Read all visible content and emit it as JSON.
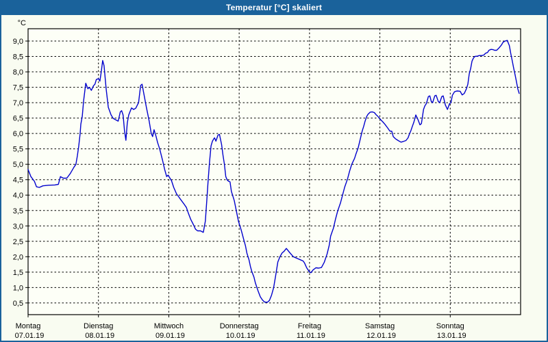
{
  "window": {
    "title": "Temperatur [°C] skaliert"
  },
  "colors": {
    "titlebar": "#1a629b",
    "window_border": "#1a629b",
    "background": "#f9fcf1",
    "plot_background": "#fdfff7",
    "grid": "#000000",
    "axis": "#000000",
    "line": "#0000cd",
    "title_text": "#ffffff",
    "label_text": "#000000"
  },
  "chart_data": {
    "type": "line",
    "title": "Temperatur [°C] skaliert",
    "y_unit_label": "°C",
    "ylim": [
      0.12,
      9.4
    ],
    "xlim_days": [
      0,
      7
    ],
    "grid": "dashed",
    "legend": "none",
    "y_ticks": [
      [
        9.0,
        "9,0"
      ],
      [
        8.5,
        "8,5"
      ],
      [
        8.0,
        "8,0"
      ],
      [
        7.5,
        "7,5"
      ],
      [
        7.0,
        "7,0"
      ],
      [
        6.5,
        "6,5"
      ],
      [
        6.0,
        "6,0"
      ],
      [
        5.5,
        "5,5"
      ],
      [
        5.0,
        "5,0"
      ],
      [
        4.5,
        "4,5"
      ],
      [
        4.0,
        "4,0"
      ],
      [
        3.5,
        "3,5"
      ],
      [
        3.0,
        "3,0"
      ],
      [
        2.5,
        "2,5"
      ],
      [
        2.0,
        "2,0"
      ],
      [
        1.5,
        "1,5"
      ],
      [
        1.0,
        "1,0"
      ],
      [
        0.5,
        "0,5"
      ]
    ],
    "x_ticks": [
      [
        0,
        "Montag",
        "07.01.19"
      ],
      [
        1,
        "Dienstag",
        "08.01.19"
      ],
      [
        2,
        "Mittwoch",
        "09.01.19"
      ],
      [
        3,
        "Donnerstag",
        "10.01.19"
      ],
      [
        4,
        "Freitag",
        "11.01.19"
      ],
      [
        5,
        "Samstag",
        "12.01.19"
      ],
      [
        6,
        "Sonntag",
        "13.01.19"
      ]
    ],
    "series": [
      {
        "name": "Temperatur",
        "color": "#0000cd",
        "points": [
          [
            0.0,
            4.83
          ],
          [
            0.04,
            4.6
          ],
          [
            0.09,
            4.45
          ],
          [
            0.12,
            4.27
          ],
          [
            0.16,
            4.25
          ],
          [
            0.21,
            4.3
          ],
          [
            0.29,
            4.32
          ],
          [
            0.38,
            4.33
          ],
          [
            0.43,
            4.35
          ],
          [
            0.46,
            4.6
          ],
          [
            0.5,
            4.55
          ],
          [
            0.55,
            4.55
          ],
          [
            0.6,
            4.7
          ],
          [
            0.65,
            4.9
          ],
          [
            0.68,
            5.0
          ],
          [
            0.7,
            5.27
          ],
          [
            0.72,
            5.6
          ],
          [
            0.74,
            6.0
          ],
          [
            0.75,
            6.3
          ],
          [
            0.77,
            6.56
          ],
          [
            0.79,
            7.07
          ],
          [
            0.82,
            7.63
          ],
          [
            0.85,
            7.45
          ],
          [
            0.87,
            7.5
          ],
          [
            0.9,
            7.4
          ],
          [
            0.93,
            7.55
          ],
          [
            0.95,
            7.6
          ],
          [
            0.97,
            7.75
          ],
          [
            1.0,
            7.78
          ],
          [
            1.02,
            7.7
          ],
          [
            1.04,
            8.0
          ],
          [
            1.06,
            8.37
          ],
          [
            1.08,
            8.2
          ],
          [
            1.11,
            7.44
          ],
          [
            1.14,
            6.85
          ],
          [
            1.18,
            6.6
          ],
          [
            1.21,
            6.49
          ],
          [
            1.24,
            6.45
          ],
          [
            1.28,
            6.4
          ],
          [
            1.31,
            6.7
          ],
          [
            1.33,
            6.74
          ],
          [
            1.35,
            6.6
          ],
          [
            1.37,
            6.1
          ],
          [
            1.39,
            5.78
          ],
          [
            1.41,
            6.34
          ],
          [
            1.43,
            6.6
          ],
          [
            1.47,
            6.83
          ],
          [
            1.5,
            6.78
          ],
          [
            1.53,
            6.82
          ],
          [
            1.57,
            7.0
          ],
          [
            1.6,
            7.56
          ],
          [
            1.62,
            7.6
          ],
          [
            1.65,
            7.23
          ],
          [
            1.68,
            6.86
          ],
          [
            1.72,
            6.41
          ],
          [
            1.75,
            6.0
          ],
          [
            1.77,
            5.9
          ],
          [
            1.79,
            6.12
          ],
          [
            1.82,
            5.9
          ],
          [
            1.84,
            5.71
          ],
          [
            1.87,
            5.5
          ],
          [
            1.91,
            5.14
          ],
          [
            1.94,
            4.84
          ],
          [
            1.97,
            4.6
          ],
          [
            1.99,
            4.65
          ],
          [
            2.04,
            4.46
          ],
          [
            2.07,
            4.25
          ],
          [
            2.11,
            4.04
          ],
          [
            2.14,
            3.95
          ],
          [
            2.16,
            3.88
          ],
          [
            2.21,
            3.73
          ],
          [
            2.25,
            3.6
          ],
          [
            2.28,
            3.4
          ],
          [
            2.31,
            3.22
          ],
          [
            2.35,
            3.04
          ],
          [
            2.38,
            2.89
          ],
          [
            2.41,
            2.84
          ],
          [
            2.45,
            2.84
          ],
          [
            2.49,
            2.79
          ],
          [
            2.52,
            3.16
          ],
          [
            2.54,
            3.83
          ],
          [
            2.56,
            4.49
          ],
          [
            2.58,
            5.1
          ],
          [
            2.6,
            5.6
          ],
          [
            2.62,
            5.75
          ],
          [
            2.64,
            5.83
          ],
          [
            2.65,
            5.86
          ],
          [
            2.67,
            5.75
          ],
          [
            2.7,
            5.95
          ],
          [
            2.72,
            5.97
          ],
          [
            2.75,
            5.64
          ],
          [
            2.77,
            5.3
          ],
          [
            2.79,
            5.0
          ],
          [
            2.81,
            4.6
          ],
          [
            2.83,
            4.49
          ],
          [
            2.85,
            4.45
          ],
          [
            2.87,
            4.43
          ],
          [
            2.89,
            4.12
          ],
          [
            2.93,
            3.82
          ],
          [
            2.96,
            3.49
          ],
          [
            2.99,
            3.15
          ],
          [
            3.03,
            2.86
          ],
          [
            3.06,
            2.6
          ],
          [
            3.09,
            2.35
          ],
          [
            3.11,
            2.12
          ],
          [
            3.14,
            1.9
          ],
          [
            3.16,
            1.68
          ],
          [
            3.18,
            1.52
          ],
          [
            3.21,
            1.34
          ],
          [
            3.23,
            1.15
          ],
          [
            3.27,
            0.88
          ],
          [
            3.3,
            0.7
          ],
          [
            3.33,
            0.6
          ],
          [
            3.36,
            0.53
          ],
          [
            3.4,
            0.52
          ],
          [
            3.43,
            0.58
          ],
          [
            3.46,
            0.75
          ],
          [
            3.49,
            1.0
          ],
          [
            3.52,
            1.41
          ],
          [
            3.55,
            1.83
          ],
          [
            3.58,
            2.0
          ],
          [
            3.61,
            2.12
          ],
          [
            3.64,
            2.18
          ],
          [
            3.67,
            2.27
          ],
          [
            3.72,
            2.13
          ],
          [
            3.77,
            2.0
          ],
          [
            3.82,
            1.95
          ],
          [
            3.87,
            1.9
          ],
          [
            3.91,
            1.86
          ],
          [
            3.93,
            1.79
          ],
          [
            3.96,
            1.64
          ],
          [
            4.0,
            1.5
          ],
          [
            4.02,
            1.48
          ],
          [
            4.05,
            1.57
          ],
          [
            4.09,
            1.64
          ],
          [
            4.13,
            1.63
          ],
          [
            4.17,
            1.65
          ],
          [
            4.21,
            1.82
          ],
          [
            4.25,
            2.09
          ],
          [
            4.28,
            2.37
          ],
          [
            4.3,
            2.67
          ],
          [
            4.34,
            2.93
          ],
          [
            4.37,
            3.23
          ],
          [
            4.4,
            3.48
          ],
          [
            4.44,
            3.75
          ],
          [
            4.47,
            4.0
          ],
          [
            4.5,
            4.26
          ],
          [
            4.54,
            4.52
          ],
          [
            4.57,
            4.78
          ],
          [
            4.6,
            5.0
          ],
          [
            4.64,
            5.19
          ],
          [
            4.66,
            5.33
          ],
          [
            4.69,
            5.52
          ],
          [
            4.71,
            5.71
          ],
          [
            4.73,
            5.9
          ],
          [
            4.75,
            6.09
          ],
          [
            4.77,
            6.23
          ],
          [
            4.79,
            6.4
          ],
          [
            4.81,
            6.54
          ],
          [
            4.83,
            6.62
          ],
          [
            4.86,
            6.69
          ],
          [
            4.89,
            6.7
          ],
          [
            4.92,
            6.68
          ],
          [
            4.95,
            6.6
          ],
          [
            4.97,
            6.56
          ],
          [
            4.99,
            6.51
          ],
          [
            5.01,
            6.45
          ],
          [
            5.04,
            6.38
          ],
          [
            5.07,
            6.3
          ],
          [
            5.11,
            6.18
          ],
          [
            5.14,
            6.08
          ],
          [
            5.17,
            6.07
          ],
          [
            5.19,
            5.9
          ],
          [
            5.22,
            5.83
          ],
          [
            5.26,
            5.77
          ],
          [
            5.3,
            5.72
          ],
          [
            5.33,
            5.74
          ],
          [
            5.37,
            5.77
          ],
          [
            5.4,
            5.86
          ],
          [
            5.42,
            5.98
          ],
          [
            5.44,
            6.09
          ],
          [
            5.46,
            6.22
          ],
          [
            5.48,
            6.35
          ],
          [
            5.5,
            6.5
          ],
          [
            5.51,
            6.6
          ],
          [
            5.54,
            6.46
          ],
          [
            5.57,
            6.28
          ],
          [
            5.59,
            6.32
          ],
          [
            5.62,
            6.78
          ],
          [
            5.64,
            6.9
          ],
          [
            5.66,
            6.97
          ],
          [
            5.69,
            7.2
          ],
          [
            5.71,
            7.22
          ],
          [
            5.73,
            7.04
          ],
          [
            5.75,
            7.0
          ],
          [
            5.78,
            7.22
          ],
          [
            5.8,
            7.24
          ],
          [
            5.83,
            7.04
          ],
          [
            5.85,
            7.0
          ],
          [
            5.88,
            7.2
          ],
          [
            5.9,
            7.22
          ],
          [
            5.93,
            6.93
          ],
          [
            5.96,
            6.78
          ],
          [
            5.99,
            6.97
          ],
          [
            6.01,
            7.0
          ],
          [
            6.03,
            7.24
          ],
          [
            6.06,
            7.35
          ],
          [
            6.08,
            7.37
          ],
          [
            6.1,
            7.38
          ],
          [
            6.14,
            7.37
          ],
          [
            6.17,
            7.25
          ],
          [
            6.2,
            7.3
          ],
          [
            6.23,
            7.45
          ],
          [
            6.25,
            7.6
          ],
          [
            6.27,
            7.93
          ],
          [
            6.29,
            8.11
          ],
          [
            6.31,
            8.35
          ],
          [
            6.33,
            8.45
          ],
          [
            6.35,
            8.5
          ],
          [
            6.39,
            8.51
          ],
          [
            6.41,
            8.53
          ],
          [
            6.45,
            8.53
          ],
          [
            6.48,
            8.55
          ],
          [
            6.5,
            8.6
          ],
          [
            6.53,
            8.63
          ],
          [
            6.55,
            8.7
          ],
          [
            6.58,
            8.73
          ],
          [
            6.61,
            8.72
          ],
          [
            6.63,
            8.7
          ],
          [
            6.66,
            8.7
          ],
          [
            6.69,
            8.77
          ],
          [
            6.73,
            8.88
          ],
          [
            6.75,
            8.96
          ],
          [
            6.78,
            9.0
          ],
          [
            6.81,
            9.02
          ],
          [
            6.84,
            8.85
          ],
          [
            6.86,
            8.6
          ],
          [
            6.88,
            8.37
          ],
          [
            6.9,
            8.14
          ],
          [
            6.92,
            7.92
          ],
          [
            6.94,
            7.7
          ],
          [
            6.96,
            7.45
          ],
          [
            6.98,
            7.3
          ]
        ]
      }
    ]
  }
}
